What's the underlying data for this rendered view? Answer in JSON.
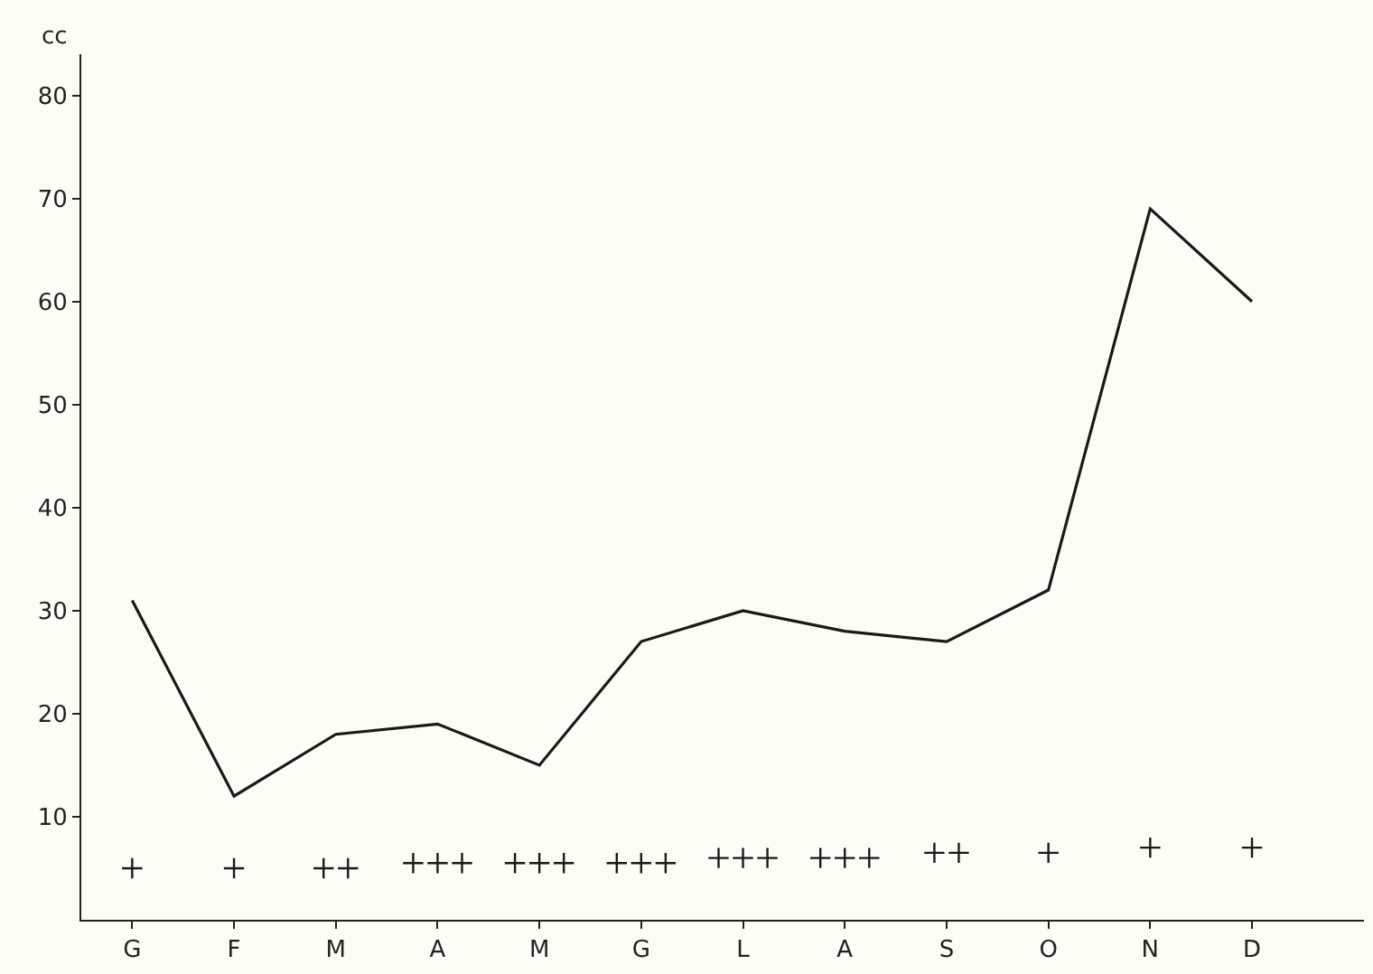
{
  "chart_data": {
    "type": "line",
    "ylabel": "cc",
    "categories": [
      "G",
      "F",
      "M",
      "A",
      "M",
      "G",
      "L",
      "A",
      "S",
      "O",
      "N",
      "D"
    ],
    "ylim": [
      0,
      84
    ],
    "yticks": [
      10,
      20,
      30,
      40,
      50,
      60,
      70,
      80
    ],
    "grid": false,
    "series": [
      {
        "color": "#1a1a1a",
        "marker": "none",
        "line_style": "solid",
        "values": [
          31,
          12,
          18,
          19,
          15,
          27,
          30,
          28,
          27,
          32,
          69,
          60
        ]
      },
      {
        "type": "scatter",
        "color": "#1a1a1a",
        "marker": "cross",
        "values": [
          5,
          5,
          5,
          5.5,
          5.5,
          5.5,
          6,
          6,
          6.5,
          6.5,
          7,
          7
        ]
      },
      {
        "type": "scatter",
        "color": "#1a1a1a",
        "marker": "cross",
        "values": [
          null,
          null,
          5,
          5.5,
          5.5,
          5.5,
          6,
          6,
          6.5,
          null,
          null,
          null
        ]
      },
      {
        "type": "scatter",
        "color": "#1a1a1a",
        "marker": "cross",
        "values": [
          null,
          null,
          null,
          5.5,
          5.5,
          5.5,
          6,
          6,
          null,
          null,
          null,
          null
        ]
      }
    ]
  }
}
